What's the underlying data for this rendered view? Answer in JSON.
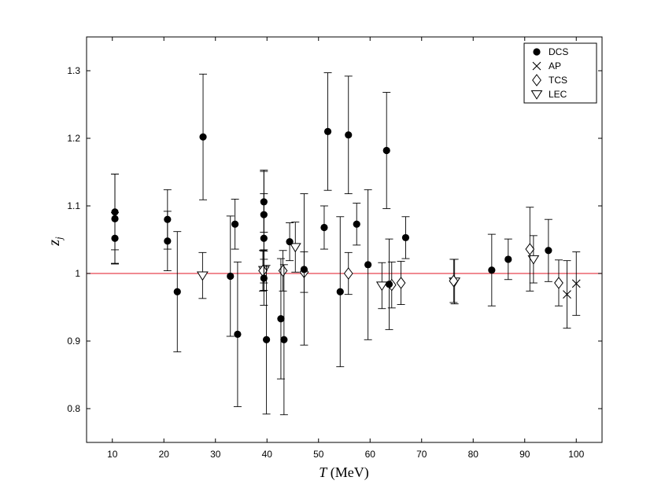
{
  "chart_data": {
    "type": "scatter",
    "title": "",
    "xlabel": "T (MeV)",
    "xlabel_var": "T",
    "xlabel_unit": "(MeV)",
    "ylabel": "z_j",
    "ylabel_main": "z",
    "ylabel_sub": "j",
    "xlim": [
      5,
      105
    ],
    "ylim": [
      0.75,
      1.35
    ],
    "xticks": [
      10,
      20,
      30,
      40,
      50,
      60,
      70,
      80,
      90,
      100
    ],
    "yticks": [
      0.8,
      0.9,
      1,
      1.1,
      1.2,
      1.3
    ],
    "ytick_labels": [
      "0.8",
      "0.9",
      "1",
      "1.1",
      "1.2",
      "1.3"
    ],
    "reference_line": {
      "y": 1.0,
      "color": "#e8454f"
    },
    "legend_position": "top-right",
    "grid": false,
    "series": [
      {
        "name": "DCS",
        "marker": "filled-circle",
        "points": [
          {
            "x": 10.5,
            "y": 1.091,
            "err": 0.056
          },
          {
            "x": 10.5,
            "y": 1.081,
            "err": 0.066
          },
          {
            "x": 10.5,
            "y": 1.052,
            "err": 0.038
          },
          {
            "x": 20.7,
            "y": 1.08,
            "err": 0.044
          },
          {
            "x": 20.7,
            "y": 1.048,
            "err": 0.044
          },
          {
            "x": 22.6,
            "y": 0.973,
            "err": 0.089
          },
          {
            "x": 27.6,
            "y": 1.202,
            "err": 0.093
          },
          {
            "x": 32.9,
            "y": 0.996,
            "err": 0.089
          },
          {
            "x": 33.8,
            "y": 1.073,
            "err": 0.037
          },
          {
            "x": 34.3,
            "y": 0.91,
            "err": 0.107
          },
          {
            "x": 39.4,
            "y": 1.106,
            "err": 0.045
          },
          {
            "x": 39.4,
            "y": 1.087,
            "err": 0.066
          },
          {
            "x": 39.4,
            "y": 1.052,
            "err": 0.066
          },
          {
            "x": 39.4,
            "y": 0.993,
            "err": 0.04
          },
          {
            "x": 39.9,
            "y": 0.902,
            "err": 0.11
          },
          {
            "x": 42.7,
            "y": 0.933,
            "err": 0.089
          },
          {
            "x": 43.3,
            "y": 0.902,
            "err": 0.111
          },
          {
            "x": 44.4,
            "y": 1.047,
            "err": 0.028
          },
          {
            "x": 47.2,
            "y": 1.006,
            "err": 0.112
          },
          {
            "x": 51.1,
            "y": 1.068,
            "err": 0.032
          },
          {
            "x": 51.8,
            "y": 1.21,
            "err": 0.087
          },
          {
            "x": 54.2,
            "y": 0.973,
            "err": 0.111
          },
          {
            "x": 55.8,
            "y": 1.205,
            "err": 0.087
          },
          {
            "x": 57.4,
            "y": 1.073,
            "err": 0.031
          },
          {
            "x": 59.6,
            "y": 1.013,
            "err": 0.111
          },
          {
            "x": 63.2,
            "y": 1.182,
            "err": 0.086
          },
          {
            "x": 63.7,
            "y": 0.984,
            "err": 0.067
          },
          {
            "x": 66.9,
            "y": 1.053,
            "err": 0.031
          },
          {
            "x": 83.6,
            "y": 1.005,
            "err": 0.053
          },
          {
            "x": 86.8,
            "y": 1.021,
            "err": 0.03
          },
          {
            "x": 94.6,
            "y": 1.034,
            "err": 0.046
          }
        ]
      },
      {
        "name": "AP",
        "marker": "cross",
        "points": [
          {
            "x": 98.2,
            "y": 0.969,
            "err": 0.05
          },
          {
            "x": 100.0,
            "y": 0.985,
            "err": 0.047
          }
        ]
      },
      {
        "name": "TCS",
        "marker": "diamond",
        "points": [
          {
            "x": 39.2,
            "y": 1.004,
            "err": 0.03
          },
          {
            "x": 43.1,
            "y": 1.004,
            "err": 0.03
          },
          {
            "x": 47.2,
            "y": 1.002,
            "err": 0.03
          },
          {
            "x": 55.8,
            "y": 1.0,
            "err": 0.031
          },
          {
            "x": 64.2,
            "y": 0.983,
            "err": 0.034
          },
          {
            "x": 66.0,
            "y": 0.986,
            "err": 0.032
          },
          {
            "x": 76.2,
            "y": 0.989,
            "err": 0.032
          },
          {
            "x": 91.0,
            "y": 1.036,
            "err": 0.062
          },
          {
            "x": 96.6,
            "y": 0.986,
            "err": 0.034
          }
        ]
      },
      {
        "name": "LEC",
        "marker": "triangle-down",
        "points": [
          {
            "x": 27.5,
            "y": 0.997,
            "err": 0.034
          },
          {
            "x": 39.4,
            "y": 1.005,
            "err": 0.03
          },
          {
            "x": 45.5,
            "y": 1.039,
            "err": 0.037
          },
          {
            "x": 62.3,
            "y": 0.982,
            "err": 0.034
          },
          {
            "x": 76.4,
            "y": 0.988,
            "err": 0.033
          },
          {
            "x": 91.7,
            "y": 1.021,
            "err": 0.035
          }
        ]
      }
    ]
  }
}
